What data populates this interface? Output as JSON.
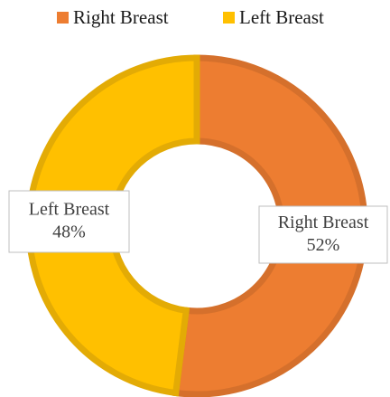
{
  "chart_data": {
    "type": "donut",
    "categories": [
      "Right Breast",
      "Left Breast"
    ],
    "values": [
      52,
      48
    ],
    "value_labels": [
      "52%",
      "48%"
    ],
    "colors": [
      "#ED7D31",
      "#FFC000"
    ],
    "border_colors": [
      "#D5702C",
      "#E3AB05"
    ],
    "legend": "top"
  }
}
